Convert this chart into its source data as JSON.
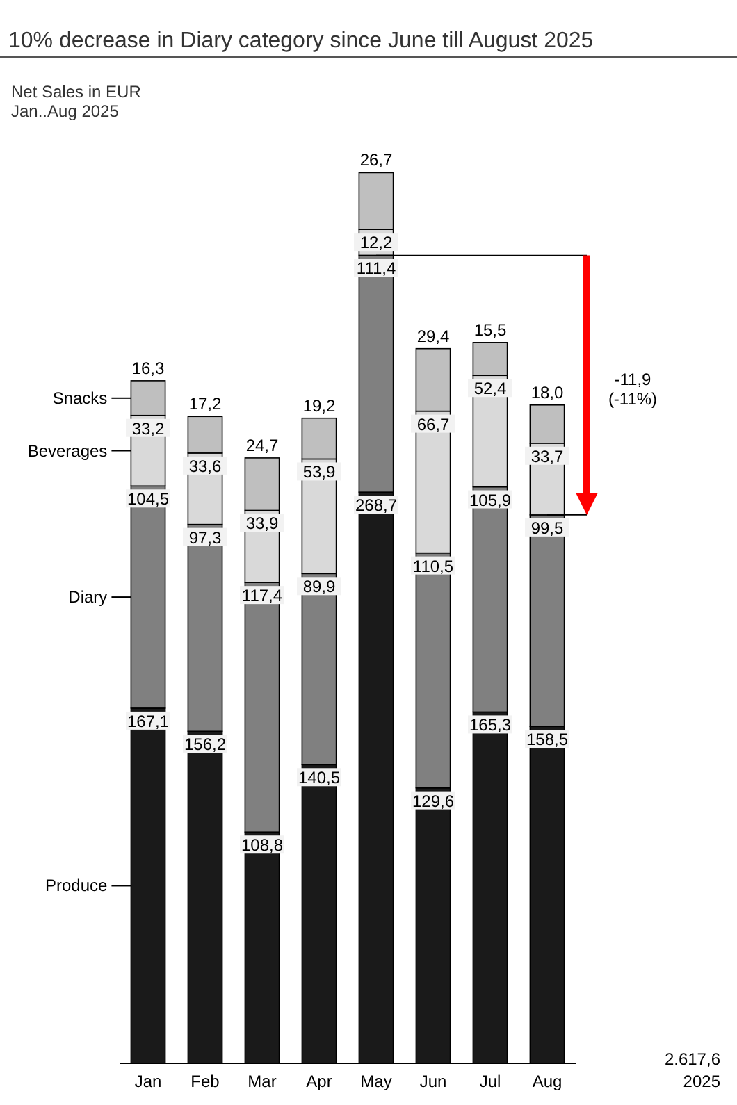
{
  "chart_data": {
    "type": "bar",
    "stacked": true,
    "title": "10% decrease in Diary category since June till August 2025",
    "subtitle": "Net Sales in EUR\nJan..Aug 2025",
    "categories": [
      "Jan",
      "Feb",
      "Mar",
      "Apr",
      "May",
      "Jun",
      "Jul",
      "Aug"
    ],
    "legend": "left",
    "series": [
      {
        "name": "Produce",
        "color": "#1a1a1a",
        "values": [
          167.1,
          156.2,
          108.8,
          140.5,
          268.7,
          129.6,
          165.3,
          158.5
        ],
        "value_labels": [
          "167,1",
          "156,2",
          "108,8",
          "140,5",
          "268,7",
          "129,6",
          "165,3",
          "158,5"
        ]
      },
      {
        "name": "Diary",
        "color": "#808080",
        "values": [
          104.5,
          97.3,
          117.4,
          89.9,
          111.4,
          110.5,
          105.9,
          99.5
        ],
        "value_labels": [
          "104,5",
          "97,3",
          "117,4",
          "89,9",
          "111,4",
          "110,5",
          "105,9",
          "99,5"
        ]
      },
      {
        "name": "Beverages",
        "color": "#d9d9d9",
        "values": [
          33.2,
          33.6,
          33.9,
          53.9,
          12.2,
          66.7,
          52.4,
          33.7
        ],
        "value_labels": [
          "33,2",
          "33,6",
          "33,9",
          "53,9",
          "12,2",
          "66,7",
          "52,4",
          "33,7"
        ]
      },
      {
        "name": "Snacks",
        "color": "#bfbfbf",
        "values": [
          16.3,
          17.2,
          24.7,
          19.2,
          26.7,
          29.4,
          15.5,
          18.0
        ],
        "value_labels": [
          "16,3",
          "17,2",
          "24,7",
          "19,2",
          "26,7",
          "29,4",
          "15,5",
          "18,0"
        ]
      }
    ],
    "annotations": [
      "-11,9\n(-11%)",
      "2.617,6\n2025"
    ]
  }
}
